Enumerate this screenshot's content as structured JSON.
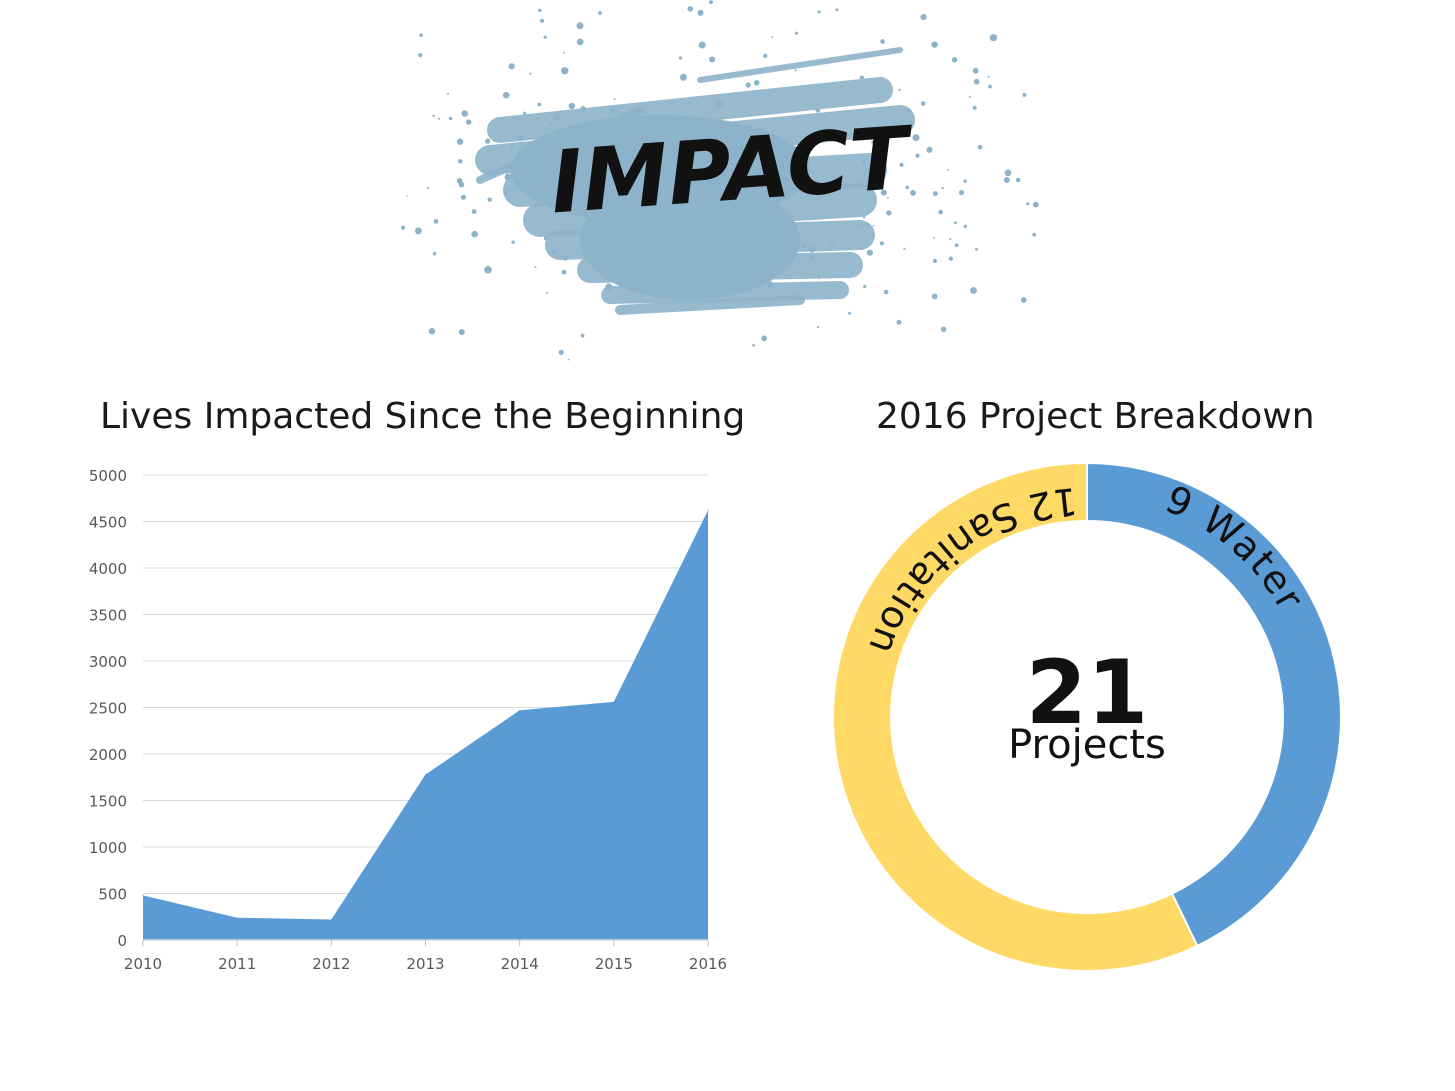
{
  "header": {
    "logo_text": "IMPACT",
    "splash_color": "#8db3ca"
  },
  "chart_data": [
    {
      "type": "area",
      "title": "Lives Impacted Since the Beginning",
      "xlabel": "",
      "ylabel": "",
      "x": [
        "2010",
        "2011",
        "2012",
        "2013",
        "2014",
        "2015",
        "2016"
      ],
      "series": [
        {
          "values": [
            480,
            240,
            220,
            1780,
            2470,
            2560,
            4620
          ]
        }
      ],
      "ylim": [
        0,
        5000
      ],
      "yticks": [
        0,
        500,
        1000,
        1500,
        2000,
        2500,
        3000,
        3500,
        4000,
        4500,
        5000
      ],
      "grid": true,
      "color": "#5b9bd5"
    },
    {
      "type": "pie",
      "variant": "donut",
      "title": "2016 Project Breakdown",
      "categories": [
        "Water",
        "Sanitation"
      ],
      "values": [
        9,
        12
      ],
      "slice_labels": [
        "9 Water",
        "12 Sanitation"
      ],
      "colors": [
        "#5b9bd5",
        "#ffd966"
      ],
      "center_value": "21",
      "center_label": "Projects"
    }
  ]
}
